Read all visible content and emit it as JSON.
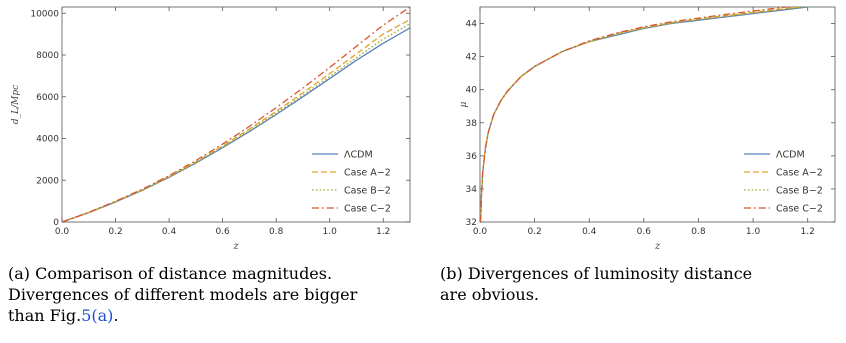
{
  "chart_data": [
    {
      "type": "line",
      "title": "",
      "xlabel": "z",
      "ylabel": "d_L/Mpc",
      "xlim": [
        0,
        1.3
      ],
      "ylim": [
        0,
        10300
      ],
      "x_ticks": [
        "0.0",
        "0.2",
        "0.4",
        "0.6",
        "0.8",
        "1.0",
        "1.2"
      ],
      "y_ticks": [
        "0",
        "2000",
        "4000",
        "6000",
        "8000",
        "10000"
      ],
      "grid": false,
      "legend_position": "bottom-right",
      "x": [
        0,
        0.1,
        0.2,
        0.3,
        0.4,
        0.5,
        0.6,
        0.7,
        0.8,
        0.9,
        1.0,
        1.1,
        1.2,
        1.3
      ],
      "series": [
        {
          "name": "ΛCDM",
          "color": "#5b7fbf",
          "dash": "solid",
          "values": [
            0,
            450,
            960,
            1520,
            2140,
            2820,
            3560,
            4330,
            5150,
            6000,
            6870,
            7750,
            8560,
            9300
          ]
        },
        {
          "name": "Case A−2",
          "color": "#e0a32a",
          "dash": "dashed",
          "values": [
            0,
            460,
            975,
            1545,
            2180,
            2880,
            3640,
            4450,
            5300,
            6190,
            7110,
            8060,
            9000,
            9700
          ]
        },
        {
          "name": "Case B−2",
          "color": "#9bab2a",
          "dash": "dotted",
          "values": [
            0,
            455,
            965,
            1530,
            2155,
            2845,
            3595,
            4380,
            5210,
            6080,
            6970,
            7880,
            8760,
            9500
          ]
        },
        {
          "name": "Case C−2",
          "color": "#d9552e",
          "dash": "dashdot",
          "values": [
            0,
            465,
            990,
            1570,
            2220,
            2940,
            3730,
            4580,
            5480,
            6420,
            7400,
            8420,
            9430,
            10300
          ]
        }
      ]
    },
    {
      "type": "line",
      "title": "",
      "xlabel": "z",
      "ylabel": "μ",
      "xlim": [
        0,
        1.3
      ],
      "ylim": [
        32,
        45
      ],
      "x_ticks": [
        "0.0",
        "0.2",
        "0.4",
        "0.6",
        "0.8",
        "1.0",
        "1.2"
      ],
      "y_ticks": [
        "32",
        "34",
        "36",
        "38",
        "40",
        "42",
        "44"
      ],
      "grid": false,
      "legend_position": "bottom-right",
      "x": [
        0.001,
        0.003,
        0.005,
        0.01,
        0.02,
        0.03,
        0.05,
        0.075,
        0.1,
        0.15,
        0.2,
        0.3,
        0.4,
        0.5,
        0.6,
        0.7,
        0.8,
        0.9,
        1.0,
        1.1,
        1.2,
        1.3
      ],
      "series": [
        {
          "name": "ΛCDM",
          "color": "#5b7fbf",
          "dash": "solid",
          "values": [
            32.0,
            32.4,
            33.5,
            35.0,
            36.5,
            37.4,
            38.5,
            39.3,
            39.9,
            40.8,
            41.4,
            42.3,
            42.9,
            43.3,
            43.7,
            44.0,
            44.2,
            44.4,
            44.6,
            44.8,
            45.0,
            45.1
          ]
        },
        {
          "name": "Case A−2",
          "color": "#e0a32a",
          "dash": "dashed",
          "values": [
            32.0,
            32.4,
            33.5,
            35.0,
            36.5,
            37.4,
            38.5,
            39.3,
            39.9,
            40.8,
            41.4,
            42.3,
            42.9,
            43.4,
            43.75,
            44.05,
            44.27,
            44.48,
            44.68,
            44.87,
            45.06,
            45.18
          ]
        },
        {
          "name": "Case B−2",
          "color": "#9bab2a",
          "dash": "dotted",
          "values": [
            32.0,
            32.4,
            33.5,
            35.0,
            36.5,
            37.4,
            38.5,
            39.3,
            39.9,
            40.8,
            41.4,
            42.3,
            42.9,
            43.35,
            43.72,
            44.02,
            44.24,
            44.44,
            44.64,
            44.83,
            45.02,
            45.14
          ]
        },
        {
          "name": "Case C−2",
          "color": "#d9552e",
          "dash": "dashdot",
          "values": [
            32.0,
            32.4,
            33.5,
            35.0,
            36.5,
            37.4,
            38.5,
            39.3,
            39.9,
            40.8,
            41.4,
            42.3,
            42.95,
            43.42,
            43.8,
            44.1,
            44.33,
            44.55,
            44.76,
            44.96,
            45.15,
            45.3
          ]
        }
      ]
    }
  ],
  "captions": [
    {
      "label": "(a)",
      "lines": [
        "Comparison of distance magnitudes.",
        "Divergences of different models are bigger",
        "than Fig."
      ],
      "ref": "5(a)",
      "tail": "."
    },
    {
      "label": "(b)",
      "lines": [
        "Divergences of luminosity distance",
        "are obvious."
      ]
    }
  ]
}
